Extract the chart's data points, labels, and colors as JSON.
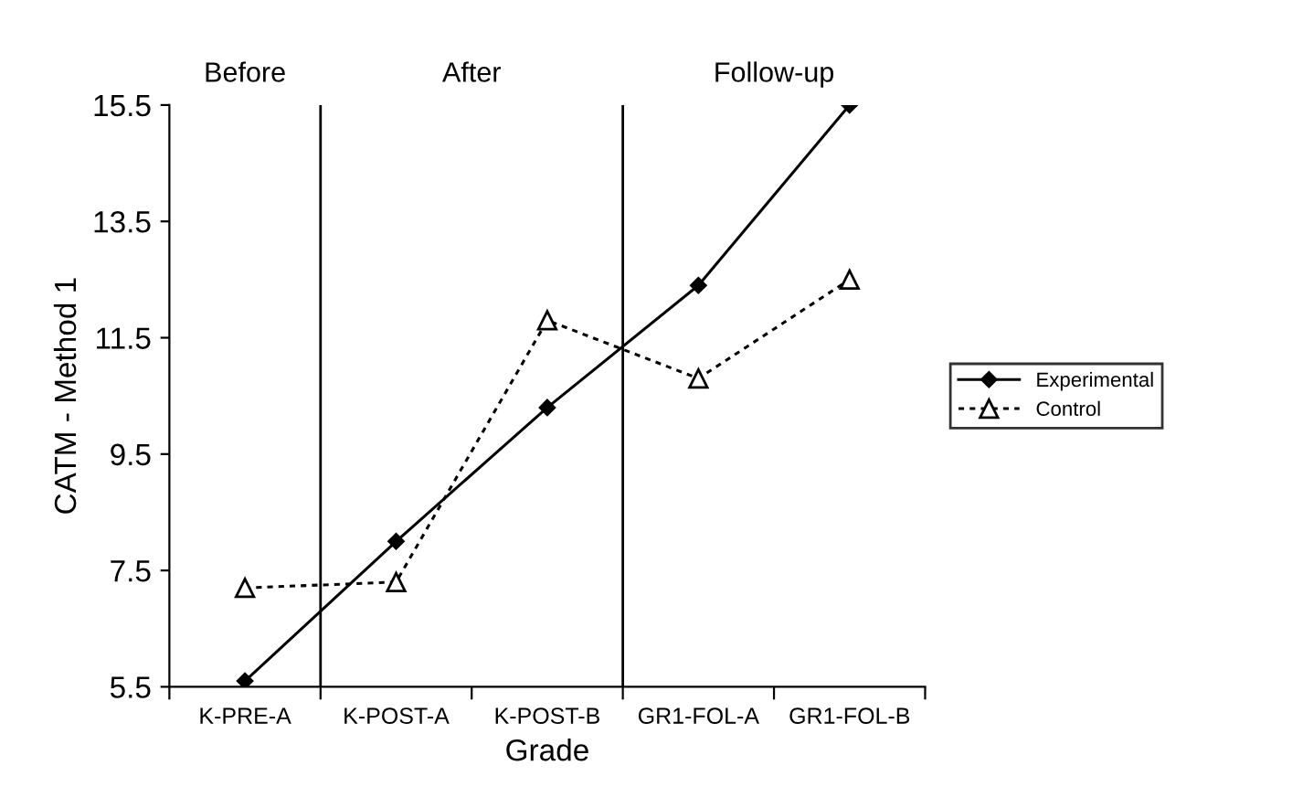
{
  "chart_data": {
    "type": "line",
    "xlabel": "Grade",
    "ylabel": "CATM - Method 1",
    "categories": [
      "K-PRE-A",
      "K-POST-A",
      "K-POST-B",
      "GR1-FOL-A",
      "GR1-FOL-B"
    ],
    "series": [
      {
        "name": "Experimental",
        "color": "#000000",
        "marker": "diamond",
        "line_style": "solid",
        "values": [
          5.6,
          8.0,
          10.3,
          12.4,
          15.5
        ]
      },
      {
        "name": "Control",
        "color": "#000000",
        "marker": "triangle",
        "line_style": "dashed",
        "values": [
          7.2,
          7.3,
          11.8,
          10.8,
          12.5
        ]
      }
    ],
    "ylim": [
      5.5,
      15.5
    ],
    "yticks": [
      5.5,
      7.5,
      9.5,
      11.5,
      13.5,
      15.5
    ],
    "annotations": [
      "Before",
      "After",
      "Follow-up"
    ],
    "grid": false,
    "legend": "right"
  }
}
